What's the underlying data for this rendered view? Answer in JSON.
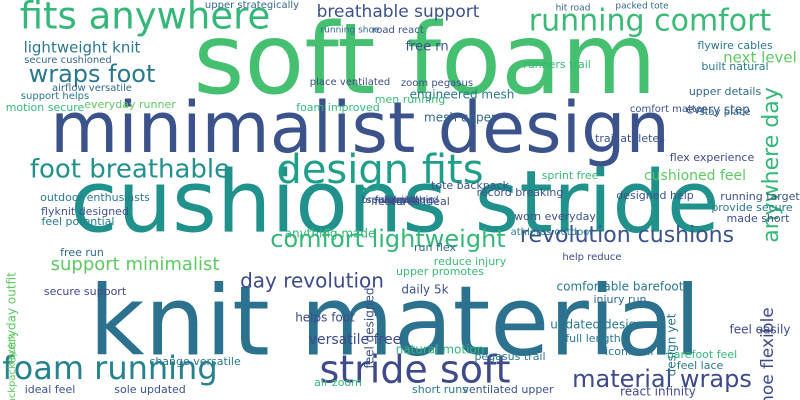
{
  "words": [
    "soft foam",
    "minimalist design",
    "cushions stride",
    "knit material",
    "fits anywhere",
    "running comfort",
    "breathable support",
    "lightweight knit",
    "wraps foot",
    "design fits",
    "foot breathable",
    "comfort lightweight",
    "support minimalist",
    "revolution cushions",
    "day revolution",
    "foam running",
    "stride soft",
    "material wraps",
    "anywhere day",
    "engineered mesh",
    "mesh upper",
    "daily 5k",
    "natural motion",
    "feel easily",
    "free rn",
    "run flex",
    "flex experience",
    "sprint free",
    "cushioned feel",
    "designed help",
    "foam improved",
    "comfort matter",
    "every step",
    "stay place",
    "upper details",
    "built natural",
    "flywire cables",
    "secure cushioned",
    "upper strategically",
    "road react",
    "hit road",
    "packed tote",
    "running shoe",
    "runners trail",
    "place ventilated",
    "zoom pegasus",
    "free run",
    "secure support",
    "comfortable barefoot",
    "updated design",
    "full length",
    "injury run",
    "iconic air",
    "barefoot feel",
    "shoe flexible",
    "pegasus trail",
    "versatile free",
    "air zoom",
    "ventilated upper",
    "react infinity",
    "short runs",
    "everyday outfit",
    "backpack quick",
    "outdoor enthusiasts",
    "flyknit designed",
    "feel potential",
    "everyday runner",
    "airflow versatile",
    "motion secure",
    "support helps",
    "reduce injury",
    "upper promotes",
    "tote backpack",
    "features ideal",
    "anything made",
    "record breaking",
    "change versatile",
    "helps foot",
    "feel designed",
    "sole updated",
    "ideal feel",
    "feel lace",
    "design yet",
    "athletes outdoor",
    "men running",
    "trail athletes",
    "provide secure",
    "running target",
    "made short",
    "worn everyday",
    "help reduce",
    "next level",
    "breaking speed",
    "sprint",
    "full length",
    "speeds iconic",
    "vet still"
  ]
}
